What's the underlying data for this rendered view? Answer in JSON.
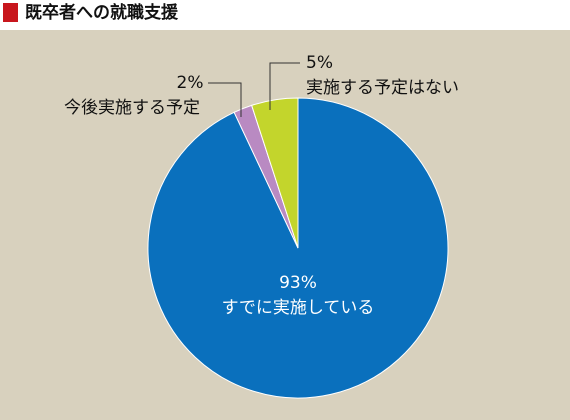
{
  "chart_data": {
    "type": "pie",
    "title": "既卒者への就職支援",
    "categories": [
      "すでに実施している",
      "今後実施する予定",
      "実施する予定はない"
    ],
    "values": [
      93,
      2,
      5
    ],
    "value_labels": [
      "93%",
      "2%",
      "5%"
    ],
    "colors": [
      "#0a70bd",
      "#b98ac2",
      "#c3d52c"
    ]
  }
}
